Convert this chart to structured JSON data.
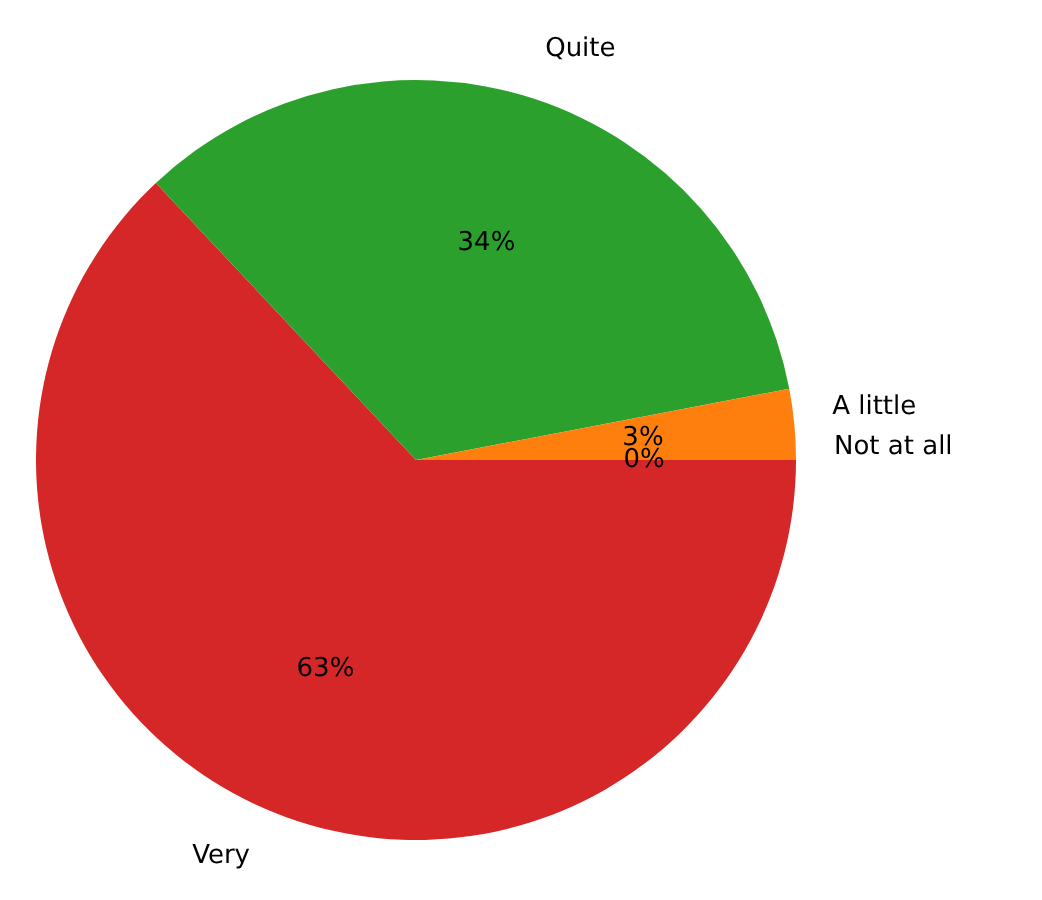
{
  "chart_data": {
    "type": "pie",
    "categories": [
      "Not at all",
      "A little",
      "Quite",
      "Very"
    ],
    "values": [
      0,
      3,
      34,
      63
    ],
    "colors": [
      "#1f77b4",
      "#ff7f0e",
      "#2ca02c",
      "#d62728"
    ],
    "value_labels": [
      "0%",
      "3%",
      "34%",
      "63%"
    ],
    "legend": false
  }
}
